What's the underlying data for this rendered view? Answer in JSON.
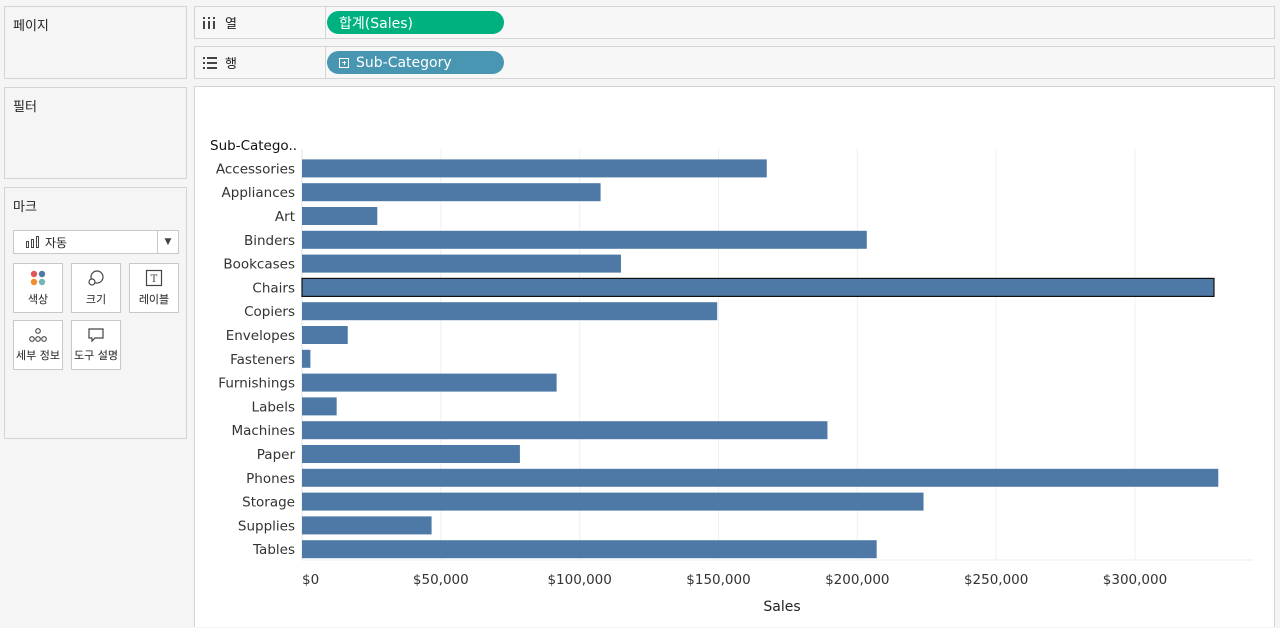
{
  "sidebar": {
    "pages_title": "페이지",
    "filters_title": "필터",
    "marks_title": "마크",
    "mark_type": "자동",
    "mark_buttons": {
      "color": "색상",
      "size": "크기",
      "label": "레이블",
      "detail": "세부 정보",
      "tooltip": "도구 설명"
    }
  },
  "shelves": {
    "columns_label": "열",
    "columns_pill": "합계(Sales)",
    "rows_label": "행",
    "rows_pill": "Sub-Category"
  },
  "colors": {
    "bar": "#4e79a7",
    "columns_pill": "#00b180",
    "rows_pill": "#4996b2"
  },
  "chart_data": {
    "type": "bar",
    "orientation": "horizontal",
    "row_header": "Sub-Catego..",
    "categories": [
      "Accessories",
      "Appliances",
      "Art",
      "Binders",
      "Bookcases",
      "Chairs",
      "Copiers",
      "Envelopes",
      "Fasteners",
      "Furnishings",
      "Labels",
      "Machines",
      "Paper",
      "Phones",
      "Storage",
      "Supplies",
      "Tables"
    ],
    "values": [
      167380,
      107532,
      27119,
      203413,
      114880,
      328449,
      149528,
      16476,
      3024,
      91705,
      12486,
      189239,
      78479,
      330007,
      223844,
      46674,
      206966
    ],
    "selected": "Chairs",
    "xlabel": "Sales",
    "xlim": [
      0,
      335000
    ],
    "xticks": [
      "$0",
      "$50,000",
      "$100,000",
      "$150,000",
      "$200,000",
      "$250,000",
      "$300,000"
    ],
    "xtick_values": [
      0,
      50000,
      100000,
      150000,
      200000,
      250000,
      300000
    ],
    "grid": true
  }
}
